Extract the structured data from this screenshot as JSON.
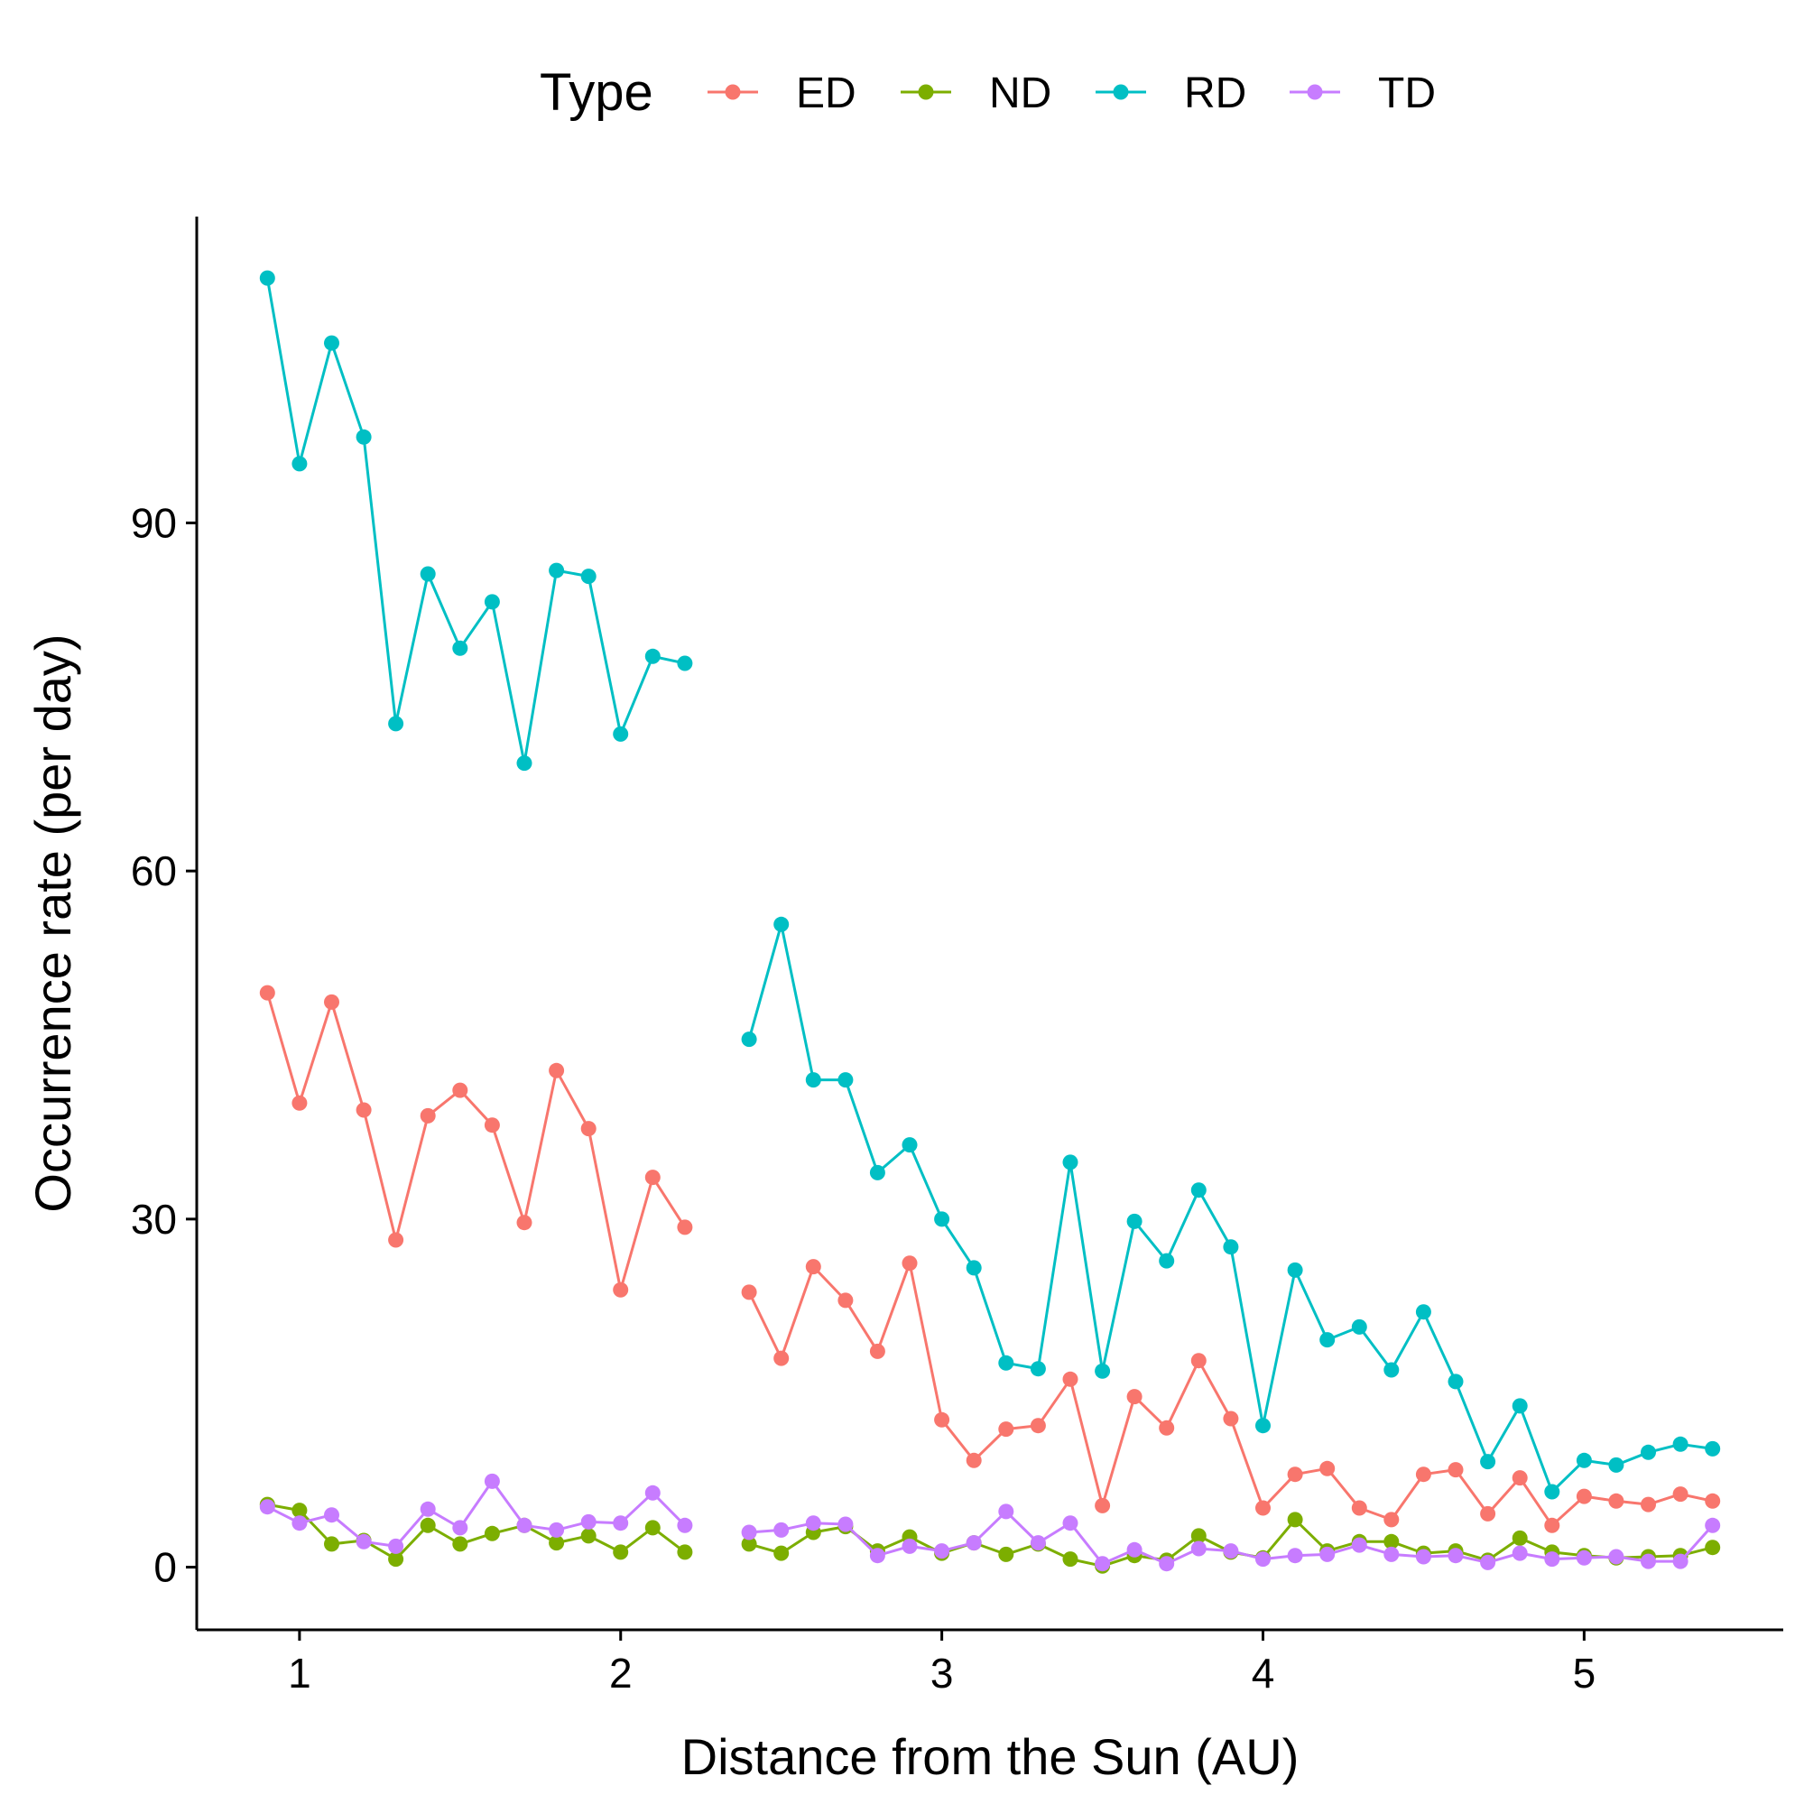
{
  "chart_data": {
    "type": "line",
    "xlabel": "Distance from the Sun (AU)",
    "ylabel": "Occurrence rate (per day)",
    "xlim": [
      0.68,
      5.62
    ],
    "ylim": [
      -5.4,
      116.4
    ],
    "xticks": [
      1,
      2,
      3,
      4,
      5
    ],
    "yticks": [
      0,
      30,
      60,
      90
    ],
    "grid": false,
    "legend": {
      "title": "Type",
      "position": "top"
    },
    "series": [
      {
        "name": "ED",
        "color": "#F8766D",
        "segments": [
          {
            "x": [
              0.9,
              1.0,
              1.1,
              1.2,
              1.3,
              1.4,
              1.5,
              1.6,
              1.7,
              1.8,
              1.9,
              2.0,
              2.1,
              2.2
            ],
            "y": [
              49.5,
              40.0,
              48.7,
              39.4,
              28.2,
              38.9,
              41.1,
              38.1,
              29.7,
              42.8,
              37.8,
              23.9,
              33.6,
              29.3
            ]
          },
          {
            "x": [
              2.4,
              2.5,
              2.6,
              2.7,
              2.8,
              2.9,
              3.0,
              3.1,
              3.2,
              3.3,
              3.4,
              3.5,
              3.6,
              3.7,
              3.8,
              3.9,
              4.0,
              4.1,
              4.2,
              4.3,
              4.4,
              4.5,
              4.6,
              4.7,
              4.8,
              4.9,
              5.0,
              5.1,
              5.2,
              5.3,
              5.4
            ],
            "y": [
              23.7,
              18.0,
              25.9,
              23.0,
              18.6,
              26.2,
              12.7,
              9.2,
              11.9,
              12.2,
              16.2,
              5.3,
              14.7,
              12.0,
              17.8,
              12.8,
              5.1,
              8.0,
              8.5,
              5.1,
              4.1,
              8.0,
              8.4,
              4.6,
              7.7,
              3.6,
              6.1,
              5.7,
              5.4,
              6.3,
              5.7
            ]
          }
        ]
      },
      {
        "name": "ND",
        "color": "#7CAE00",
        "segments": [
          {
            "x": [
              0.9,
              1.0,
              1.1,
              1.2,
              1.3,
              1.4,
              1.5,
              1.6,
              1.7,
              1.8,
              1.9,
              2.0,
              2.1,
              2.2
            ],
            "y": [
              5.4,
              4.9,
              2.0,
              2.3,
              0.7,
              3.6,
              2.0,
              2.9,
              3.6,
              2.1,
              2.7,
              1.3,
              3.4,
              1.3
            ]
          },
          {
            "x": [
              2.4,
              2.5,
              2.6,
              2.7,
              2.8,
              2.9,
              3.0,
              3.1,
              3.2,
              3.3,
              3.4,
              3.5,
              3.6,
              3.7,
              3.8,
              3.9,
              4.0,
              4.1,
              4.2,
              4.3,
              4.4,
              4.5,
              4.6,
              4.7,
              4.8,
              4.9,
              5.0,
              5.1,
              5.2,
              5.3,
              5.4
            ],
            "y": [
              2.0,
              1.2,
              3.0,
              3.5,
              1.4,
              2.6,
              1.2,
              2.1,
              1.1,
              2.0,
              0.7,
              0.1,
              1.0,
              0.6,
              2.7,
              1.3,
              0.8,
              4.1,
              1.4,
              2.2,
              2.2,
              1.2,
              1.4,
              0.6,
              2.5,
              1.3,
              1.0,
              0.8,
              0.9,
              1.0,
              1.7
            ]
          }
        ]
      },
      {
        "name": "RD",
        "color": "#00BFC4",
        "segments": [
          {
            "x": [
              0.9,
              1.0,
              1.1,
              1.2,
              1.3,
              1.4,
              1.5,
              1.6,
              1.7,
              1.8,
              1.9,
              2.0,
              2.1,
              2.2
            ],
            "y": [
              111.1,
              95.1,
              105.5,
              97.4,
              72.7,
              85.6,
              79.2,
              83.2,
              69.3,
              85.9,
              85.4,
              71.8,
              78.5,
              77.9
            ]
          },
          {
            "x": [
              2.4,
              2.5,
              2.6,
              2.7,
              2.8,
              2.9,
              3.0,
              3.1,
              3.2,
              3.3,
              3.4,
              3.5,
              3.6,
              3.7,
              3.8,
              3.9,
              4.0,
              4.1,
              4.2,
              4.3,
              4.4,
              4.5,
              4.6,
              4.7,
              4.8,
              4.9,
              5.0,
              5.1,
              5.2,
              5.3,
              5.4
            ],
            "y": [
              45.5,
              55.4,
              42.0,
              42.0,
              34.0,
              36.4,
              30.0,
              25.8,
              17.6,
              17.1,
              34.9,
              16.9,
              29.8,
              26.4,
              32.5,
              27.6,
              12.2,
              25.6,
              19.6,
              20.7,
              17.0,
              22.0,
              16.0,
              9.1,
              13.9,
              6.5,
              9.2,
              8.8,
              9.9,
              10.6,
              10.2
            ]
          }
        ]
      },
      {
        "name": "TD",
        "color": "#C77CFF",
        "segments": [
          {
            "x": [
              0.9,
              1.0,
              1.1,
              1.2,
              1.3,
              1.4,
              1.5,
              1.6,
              1.7,
              1.8,
              1.9,
              2.0,
              2.1,
              2.2
            ],
            "y": [
              5.2,
              3.8,
              4.5,
              2.2,
              1.8,
              5.0,
              3.4,
              7.4,
              3.6,
              3.2,
              3.9,
              3.8,
              6.4,
              3.6
            ]
          },
          {
            "x": [
              2.4,
              2.5,
              2.6,
              2.7,
              2.8,
              2.9,
              3.0,
              3.1,
              3.2,
              3.3,
              3.4,
              3.5,
              3.6,
              3.7,
              3.8,
              3.9,
              4.0,
              4.1,
              4.2,
              4.3,
              4.4,
              4.5,
              4.6,
              4.7,
              4.8,
              4.9,
              5.0,
              5.1,
              5.2,
              5.3,
              5.4
            ],
            "y": [
              3.0,
              3.2,
              3.8,
              3.7,
              1.0,
              1.8,
              1.4,
              2.1,
              4.8,
              2.1,
              3.8,
              0.3,
              1.5,
              0.3,
              1.6,
              1.4,
              0.7,
              1.0,
              1.1,
              1.9,
              1.1,
              0.9,
              1.0,
              0.4,
              1.2,
              0.7,
              0.8,
              0.9,
              0.5,
              0.5,
              3.6
            ]
          }
        ]
      }
    ]
  }
}
